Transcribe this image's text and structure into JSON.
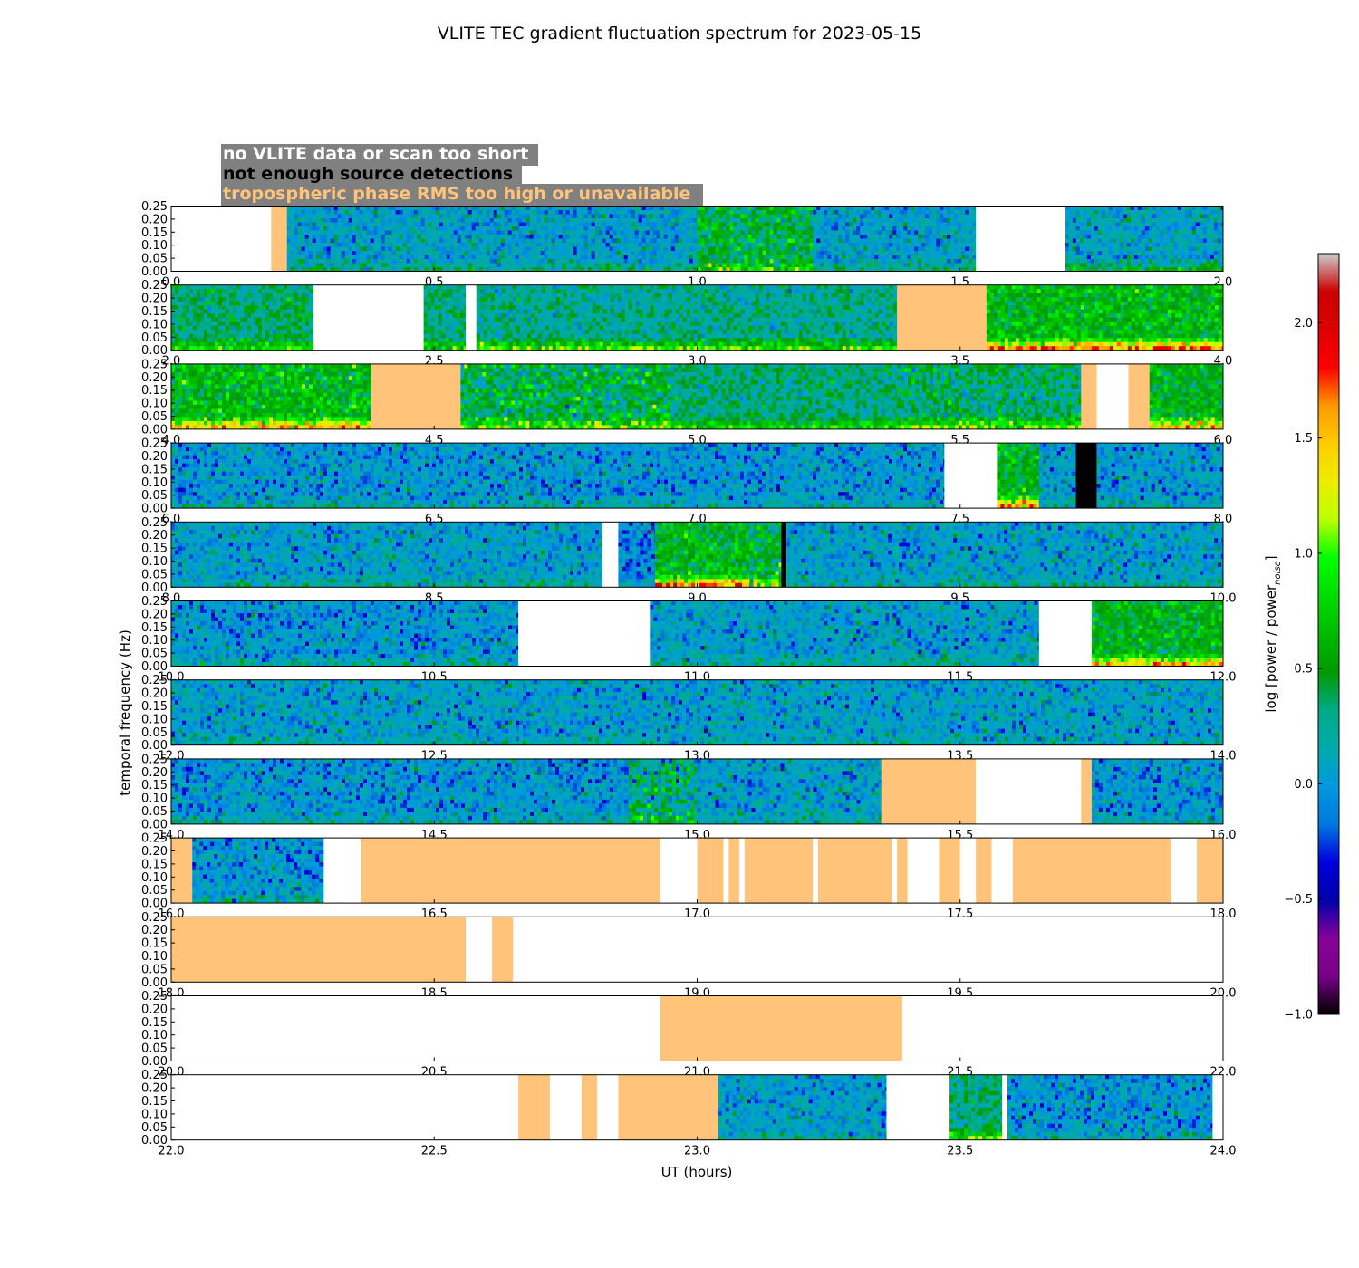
{
  "chart_data": {
    "type": "heatmap",
    "title": "VLITE TEC gradient fluctuation spectrum for 2023-05-15",
    "xlabel": "UT (hours)",
    "ylabel": "temporal frequency (Hz)",
    "colorbar_label": "log [power / power",
    "colorbar_label_sub": "noise",
    "colorbar_label_end": "]",
    "colorbar_ticks": [
      "2.0",
      "1.5",
      "1.0",
      "0.5",
      "0.0",
      "−0.5",
      "−1.0"
    ],
    "colorbar_tick_values": [
      2.0,
      1.5,
      1.0,
      0.5,
      0.0,
      -0.5,
      -1.0
    ],
    "colorbar_range": [
      -1.0,
      2.3
    ],
    "colormap": "nipy_spectral",
    "ylim": [
      0,
      0.25
    ],
    "ytick_labels": [
      "0.25",
      "0.20",
      "0.15",
      "0.10",
      "0.05",
      "0.00"
    ],
    "legend": [
      {
        "label": "no VLITE data or scan too short",
        "text_color": "#ffffff",
        "meaning": "empty"
      },
      {
        "label": "not enough source detections",
        "text_color": "#000000",
        "meaning": "no_det"
      },
      {
        "label": "tropospheric phase RMS too high or unavailable",
        "text_color": "#ffc37a",
        "meaning": "tropo"
      }
    ],
    "legend_box_color": "#808080",
    "colors": {
      "empty": "#ffffff",
      "no_det": "#000000",
      "tropo": "#ffc37a"
    },
    "rows": [
      {
        "xlim": [
          0,
          2
        ],
        "xtick_labels": [
          "0.0",
          "0.5",
          "1.0",
          "1.5",
          "2.0"
        ],
        "segments": [
          {
            "kind": "empty",
            "start": 0,
            "end": 0.19
          },
          {
            "kind": "tropo",
            "start": 0.19,
            "end": 0.22
          },
          {
            "kind": "data",
            "start": 0.22,
            "end": 1.0,
            "level": 0.05,
            "lowfreq": 0.3
          },
          {
            "kind": "data",
            "start": 1.0,
            "end": 1.22,
            "level": 0.45,
            "lowfreq": 0.4,
            "spread": 1.4
          },
          {
            "kind": "data",
            "start": 1.22,
            "end": 1.53,
            "level": 0.05,
            "lowfreq": 0.3
          },
          {
            "kind": "empty",
            "start": 1.53,
            "end": 1.7
          },
          {
            "kind": "data",
            "start": 1.7,
            "end": 2.0,
            "level": 0.08,
            "lowfreq": 0.5
          }
        ]
      },
      {
        "xlim": [
          2,
          4
        ],
        "xtick_labels": [
          "2.0",
          "2.5",
          "3.0",
          "3.5",
          "4.0"
        ],
        "segments": [
          {
            "kind": "data",
            "start": 2.0,
            "end": 2.27,
            "level": 0.35,
            "lowfreq": 0.5
          },
          {
            "kind": "empty",
            "start": 2.27,
            "end": 2.48
          },
          {
            "kind": "data",
            "start": 2.48,
            "end": 2.56,
            "level": 0.3,
            "lowfreq": 0.5
          },
          {
            "kind": "empty",
            "start": 2.56,
            "end": 2.58
          },
          {
            "kind": "data",
            "start": 2.58,
            "end": 3.38,
            "level": 0.25,
            "lowfreq": 0.8
          },
          {
            "kind": "tropo",
            "start": 3.38,
            "end": 3.55
          },
          {
            "kind": "data",
            "start": 3.55,
            "end": 4.0,
            "level": 0.6,
            "lowfreq": 1.2
          }
        ]
      },
      {
        "xlim": [
          4,
          6
        ],
        "xtick_labels": [
          "4.0",
          "4.5",
          "5.0",
          "5.5",
          "6.0"
        ],
        "segments": [
          {
            "kind": "data",
            "start": 4.0,
            "end": 4.38,
            "level": 0.6,
            "lowfreq": 1.0,
            "spread": 1.1
          },
          {
            "kind": "tropo",
            "start": 4.38,
            "end": 4.55
          },
          {
            "kind": "data",
            "start": 4.55,
            "end": 4.95,
            "level": 0.45,
            "lowfreq": 0.6,
            "spread": 1.5
          },
          {
            "kind": "data",
            "start": 4.95,
            "end": 5.38,
            "level": 0.3,
            "lowfreq": 0.6
          },
          {
            "kind": "data",
            "start": 5.38,
            "end": 5.73,
            "level": 0.35,
            "lowfreq": 0.8,
            "spread": 1.2
          },
          {
            "kind": "tropo",
            "start": 5.73,
            "end": 5.76
          },
          {
            "kind": "empty",
            "start": 5.76,
            "end": 5.82
          },
          {
            "kind": "tropo",
            "start": 5.82,
            "end": 5.86
          },
          {
            "kind": "data",
            "start": 5.86,
            "end": 6.0,
            "level": 0.55,
            "lowfreq": 1.2
          }
        ]
      },
      {
        "xlim": [
          6,
          8
        ],
        "xtick_labels": [
          "6.0",
          "6.5",
          "7.0",
          "7.5",
          "8.0"
        ],
        "segments": [
          {
            "kind": "data",
            "start": 6.0,
            "end": 7.47,
            "level": 0.0,
            "lowfreq": 0.2
          },
          {
            "kind": "empty",
            "start": 7.47,
            "end": 7.57
          },
          {
            "kind": "data",
            "start": 7.57,
            "end": 7.65,
            "level": 0.55,
            "lowfreq": 1.2
          },
          {
            "kind": "data",
            "start": 7.65,
            "end": 7.72,
            "level": 0.05,
            "lowfreq": 0.2
          },
          {
            "kind": "no_det",
            "start": 7.72,
            "end": 7.76
          },
          {
            "kind": "data",
            "start": 7.76,
            "end": 8.0,
            "level": 0.0,
            "lowfreq": 0.2
          }
        ]
      },
      {
        "xlim": [
          8,
          10
        ],
        "xtick_labels": [
          "8.0",
          "8.5",
          "9.0",
          "9.5",
          "10.0"
        ],
        "segments": [
          {
            "kind": "data",
            "start": 8.0,
            "end": 8.82,
            "level": 0.05,
            "lowfreq": 0.2
          },
          {
            "kind": "empty",
            "start": 8.82,
            "end": 8.85
          },
          {
            "kind": "data",
            "start": 8.85,
            "end": 8.92,
            "level": -0.1,
            "lowfreq": 0.2
          },
          {
            "kind": "data",
            "start": 8.92,
            "end": 9.1,
            "level": 0.55,
            "lowfreq": 1.3
          },
          {
            "kind": "data",
            "start": 9.1,
            "end": 9.16,
            "level": 0.5,
            "lowfreq": 0.5,
            "spread": 1.6
          },
          {
            "kind": "no_det",
            "start": 9.16,
            "end": 9.17
          },
          {
            "kind": "data",
            "start": 9.17,
            "end": 10.0,
            "level": 0.05,
            "lowfreq": 0.2
          }
        ]
      },
      {
        "xlim": [
          10,
          12
        ],
        "xtick_labels": [
          "10.0",
          "10.5",
          "11.0",
          "11.5",
          "12.0"
        ],
        "segments": [
          {
            "kind": "data",
            "start": 10.0,
            "end": 10.66,
            "level": 0.0,
            "lowfreq": 0.2
          },
          {
            "kind": "empty",
            "start": 10.66,
            "end": 10.91
          },
          {
            "kind": "data",
            "start": 10.91,
            "end": 11.65,
            "level": 0.05,
            "lowfreq": 0.2
          },
          {
            "kind": "empty",
            "start": 11.65,
            "end": 11.75
          },
          {
            "kind": "data",
            "start": 11.75,
            "end": 12.0,
            "level": 0.55,
            "lowfreq": 1.0
          }
        ]
      },
      {
        "xlim": [
          12,
          14
        ],
        "xtick_labels": [
          "12.0",
          "12.5",
          "13.0",
          "13.5",
          "14.0"
        ],
        "segments": [
          {
            "kind": "data",
            "start": 12.0,
            "end": 14.0,
            "level": 0.05,
            "lowfreq": 0.15
          }
        ]
      },
      {
        "xlim": [
          14,
          16
        ],
        "xtick_labels": [
          "14.0",
          "14.5",
          "15.0",
          "15.5",
          "16.0"
        ],
        "segments": [
          {
            "kind": "data",
            "start": 14.0,
            "end": 14.87,
            "level": 0.0,
            "lowfreq": 0.2
          },
          {
            "kind": "data",
            "start": 14.87,
            "end": 15.0,
            "level": 0.3,
            "lowfreq": 0.4,
            "spread": 1.6
          },
          {
            "kind": "data",
            "start": 15.0,
            "end": 15.35,
            "level": 0.05,
            "lowfreq": 0.2
          },
          {
            "kind": "tropo",
            "start": 15.35,
            "end": 15.53
          },
          {
            "kind": "empty",
            "start": 15.53,
            "end": 15.73
          },
          {
            "kind": "tropo",
            "start": 15.73,
            "end": 15.75
          },
          {
            "kind": "data",
            "start": 15.75,
            "end": 16.0,
            "level": 0.0,
            "lowfreq": 0.2
          }
        ]
      },
      {
        "xlim": [
          16,
          18
        ],
        "xtick_labels": [
          "16.0",
          "16.5",
          "17.0",
          "17.5",
          "18.0"
        ],
        "segments": [
          {
            "kind": "tropo",
            "start": 16.0,
            "end": 16.04
          },
          {
            "kind": "data",
            "start": 16.04,
            "end": 16.29,
            "level": 0.0,
            "lowfreq": 0.2
          },
          {
            "kind": "empty",
            "start": 16.29,
            "end": 16.36
          },
          {
            "kind": "tropo",
            "start": 16.36,
            "end": 16.93
          },
          {
            "kind": "empty",
            "start": 16.93,
            "end": 17.0
          },
          {
            "kind": "tropo",
            "start": 17.0,
            "end": 17.05
          },
          {
            "kind": "empty",
            "start": 17.05,
            "end": 17.06
          },
          {
            "kind": "tropo",
            "start": 17.06,
            "end": 17.08
          },
          {
            "kind": "empty",
            "start": 17.08,
            "end": 17.09
          },
          {
            "kind": "tropo",
            "start": 17.09,
            "end": 17.22
          },
          {
            "kind": "empty",
            "start": 17.22,
            "end": 17.23
          },
          {
            "kind": "tropo",
            "start": 17.23,
            "end": 17.37
          },
          {
            "kind": "empty",
            "start": 17.37,
            "end": 17.38
          },
          {
            "kind": "tropo",
            "start": 17.38,
            "end": 17.4
          },
          {
            "kind": "empty",
            "start": 17.4,
            "end": 17.46
          },
          {
            "kind": "tropo",
            "start": 17.46,
            "end": 17.5
          },
          {
            "kind": "empty",
            "start": 17.5,
            "end": 17.53
          },
          {
            "kind": "tropo",
            "start": 17.53,
            "end": 17.56
          },
          {
            "kind": "empty",
            "start": 17.56,
            "end": 17.6
          },
          {
            "kind": "tropo",
            "start": 17.6,
            "end": 17.9
          },
          {
            "kind": "empty",
            "start": 17.9,
            "end": 17.95
          },
          {
            "kind": "tropo",
            "start": 17.95,
            "end": 18.0
          }
        ]
      },
      {
        "xlim": [
          18,
          20
        ],
        "xtick_labels": [
          "18.0",
          "18.5",
          "19.0",
          "19.5",
          "20.0"
        ],
        "segments": [
          {
            "kind": "tropo",
            "start": 18.0,
            "end": 18.56
          },
          {
            "kind": "empty",
            "start": 18.56,
            "end": 18.61
          },
          {
            "kind": "tropo",
            "start": 18.61,
            "end": 18.65
          },
          {
            "kind": "empty",
            "start": 18.65,
            "end": 20.0
          }
        ]
      },
      {
        "xlim": [
          20,
          22
        ],
        "xtick_labels": [
          "20.0",
          "20.5",
          "21.0",
          "21.5",
          "22.0"
        ],
        "segments": [
          {
            "kind": "empty",
            "start": 20.0,
            "end": 20.93
          },
          {
            "kind": "tropo",
            "start": 20.93,
            "end": 21.39
          },
          {
            "kind": "empty",
            "start": 21.39,
            "end": 22.0
          }
        ]
      },
      {
        "xlim": [
          22,
          24
        ],
        "xtick_labels": [
          "22.0",
          "22.5",
          "23.0",
          "23.5",
          "24.0"
        ],
        "segments": [
          {
            "kind": "empty",
            "start": 22.0,
            "end": 22.66
          },
          {
            "kind": "tropo",
            "start": 22.66,
            "end": 22.72
          },
          {
            "kind": "empty",
            "start": 22.72,
            "end": 22.78
          },
          {
            "kind": "tropo",
            "start": 22.78,
            "end": 22.81
          },
          {
            "kind": "empty",
            "start": 22.81,
            "end": 22.85
          },
          {
            "kind": "tropo",
            "start": 22.85,
            "end": 23.04
          },
          {
            "kind": "data",
            "start": 23.04,
            "end": 23.36,
            "level": 0.05,
            "lowfreq": 0.2
          },
          {
            "kind": "empty",
            "start": 23.36,
            "end": 23.48
          },
          {
            "kind": "data",
            "start": 23.48,
            "end": 23.58,
            "level": 0.3,
            "lowfreq": 0.7
          },
          {
            "kind": "empty",
            "start": 23.58,
            "end": 23.59
          },
          {
            "kind": "data",
            "start": 23.59,
            "end": 23.98,
            "level": 0.0,
            "lowfreq": 0.2
          },
          {
            "kind": "empty",
            "start": 23.98,
            "end": 24.0
          }
        ]
      }
    ]
  }
}
